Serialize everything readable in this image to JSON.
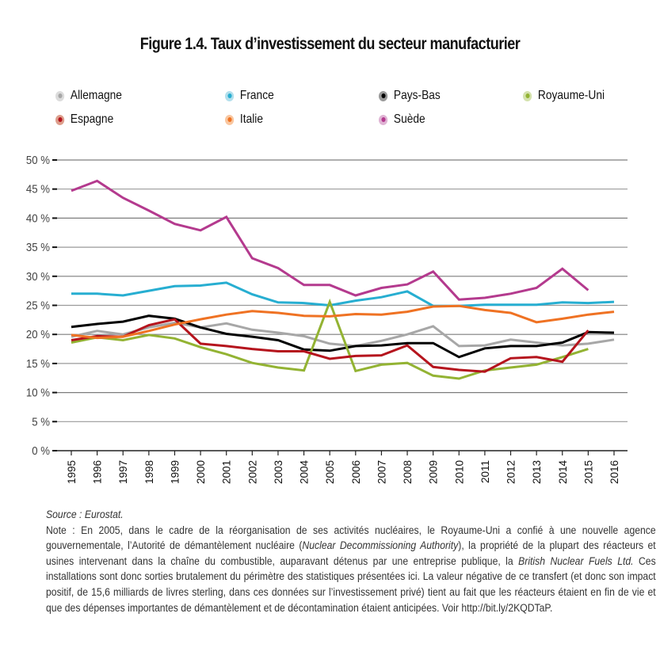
{
  "title": "Figure 1.4. Taux d’investissement du secteur manufacturier",
  "chart_data": {
    "type": "line",
    "title": "Figure 1.4. Taux d’investissement du secteur manufacturier",
    "xlabel": "",
    "ylabel": "",
    "ylim": [
      0,
      50
    ],
    "yticks": [
      0,
      5,
      10,
      15,
      20,
      25,
      30,
      35,
      40,
      45,
      50
    ],
    "ytick_labels": [
      "0 %",
      "5 %",
      "10 %",
      "15 %",
      "20 %",
      "25 %",
      "30 %",
      "35 %",
      "40 %",
      "45 %",
      "50 %"
    ],
    "grid": true,
    "legend_position": "top",
    "x": [
      "1995",
      "1996",
      "1997",
      "1998",
      "1999",
      "2000",
      "2001",
      "2002",
      "2003",
      "2004",
      "2005",
      "2006",
      "2007",
      "2008",
      "2009",
      "2010",
      "2011",
      "2012",
      "2013",
      "2014",
      "2015",
      "2016"
    ],
    "series": [
      {
        "name": "Allemagne",
        "color": "#a7a7a7",
        "halo": "#dcdcdc",
        "values": [
          19.6,
          20.6,
          20.0,
          21.2,
          22.0,
          21.2,
          21.9,
          20.8,
          20.3,
          19.7,
          18.4,
          18.0,
          18.9,
          20.0,
          21.4,
          18.0,
          18.1,
          19.1,
          18.6,
          18.1,
          18.4,
          19.1
        ]
      },
      {
        "name": "France",
        "color": "#27aed1",
        "halo": "#b3dfec",
        "values": [
          27.0,
          27.0,
          26.7,
          27.5,
          28.3,
          28.4,
          28.9,
          26.9,
          25.5,
          25.4,
          25.0,
          25.8,
          26.4,
          27.4,
          24.9,
          24.9,
          25.1,
          25.1,
          25.1,
          25.5,
          25.4,
          25.6
        ]
      },
      {
        "name": "Pays-Bas",
        "color": "#000000",
        "halo": "#9a9a9a",
        "values": [
          21.3,
          21.8,
          22.2,
          23.2,
          22.7,
          21.2,
          20.1,
          19.6,
          19.0,
          17.4,
          17.2,
          18.0,
          18.1,
          18.5,
          18.5,
          16.1,
          17.6,
          18.0,
          18.0,
          18.6,
          20.4,
          20.3
        ]
      },
      {
        "name": "Royaume-Uni",
        "color": "#93b333",
        "halo": "#d4e2ad",
        "values": [
          18.6,
          19.5,
          19.0,
          19.9,
          19.3,
          17.8,
          16.6,
          15.1,
          14.3,
          13.8,
          25.6,
          13.7,
          14.8,
          15.1,
          12.9,
          12.4,
          13.8,
          14.3,
          14.8,
          16.1,
          17.5,
          null
        ]
      },
      {
        "name": "Espagne",
        "color": "#b5141d",
        "halo": "#dd9e8c",
        "values": [
          19.0,
          19.7,
          19.6,
          21.6,
          22.6,
          18.4,
          18.0,
          17.5,
          17.1,
          17.1,
          15.8,
          16.3,
          16.4,
          18.1,
          14.4,
          13.9,
          13.6,
          15.9,
          16.1,
          15.3,
          20.7,
          null
        ]
      },
      {
        "name": "Italie",
        "color": "#ef7223",
        "halo": "#f9c7a0",
        "values": [
          19.9,
          19.4,
          19.6,
          20.6,
          21.7,
          22.6,
          23.4,
          24.0,
          23.7,
          23.2,
          23.1,
          23.5,
          23.4,
          23.9,
          24.8,
          24.9,
          24.2,
          23.7,
          22.1,
          22.7,
          23.4,
          23.9
        ]
      },
      {
        "name": "Suède",
        "color": "#b43a8e",
        "halo": "#dfb4d4",
        "values": [
          44.7,
          46.4,
          43.5,
          41.3,
          39.0,
          37.9,
          40.2,
          33.1,
          31.4,
          28.5,
          28.5,
          26.7,
          28.0,
          28.6,
          30.8,
          26.0,
          26.3,
          27.0,
          28.0,
          31.3,
          27.6,
          null
        ]
      }
    ]
  },
  "legend": [
    {
      "label": "Allemagne"
    },
    {
      "label": "France"
    },
    {
      "label": "Pays-Bas"
    },
    {
      "label": "Royaume-Uni"
    },
    {
      "label": "Espagne"
    },
    {
      "label": "Italie"
    },
    {
      "label": "Suède"
    }
  ],
  "notes": {
    "source": "Source : Eurostat.",
    "note_prefix": "Note : En 2005, dans le cadre de la réorganisation de ses activités nucléaires, le Royaume-Uni a confié à une nouvelle agence gouvernementale, l’Autorité de démantèlement nucléaire (",
    "note_italic1": "Nuclear Decommissioning Authority",
    "note_mid": "), la propriété de la plupart des réacteurs et usines intervenant dans la chaîne du combustible, auparavant détenus par une entreprise publique, la ",
    "note_italic2": "British Nuclear Fuels Ltd.",
    "note_suffix": " Ces installations sont donc sorties brutalement du périmètre des statistiques présentées ici. La valeur négative de ce transfert (et donc son impact positif, de 15,6 milliards de livres sterling, dans ces données sur l’investissement privé) tient au fait que les réacteurs étaient en fin de vie et que des dépenses importantes de démantèlement et de décontamination étaient anticipées. Voir http://bit.ly/2KQDTaP."
  }
}
